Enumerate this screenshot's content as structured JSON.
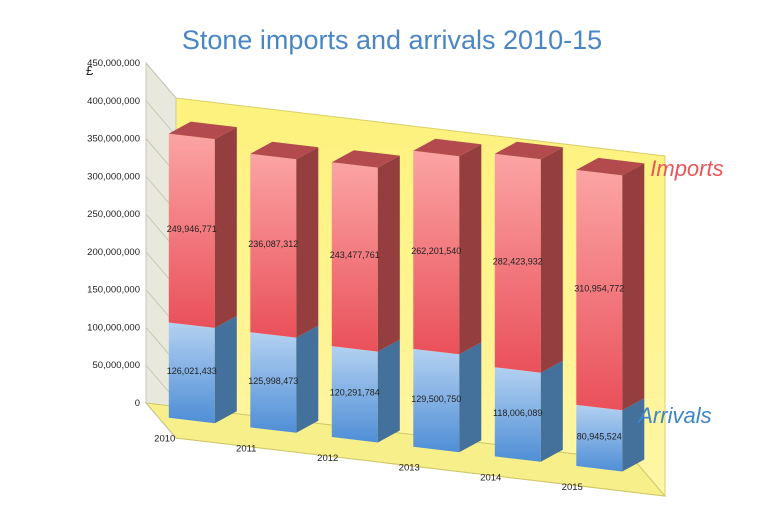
{
  "chart_data": {
    "type": "bar",
    "stacked": true,
    "three_d": true,
    "title": "Stone imports and arrivals 2010-15",
    "ylabel": "£",
    "ylim": [
      0,
      450000000
    ],
    "yticks": [
      "0",
      "50,000,000",
      "100,000,000",
      "150,000,000",
      "200,000,000",
      "250,000,000",
      "300,000,000",
      "350,000,000",
      "400,000,000",
      "450,000,000"
    ],
    "categories": [
      "2010",
      "2011",
      "2012",
      "2013",
      "2014",
      "2015"
    ],
    "series": [
      {
        "name": "Arrivals",
        "values": [
          126021433,
          125998473,
          120291784,
          129500750,
          118006089,
          80945524
        ],
        "labels": [
          "126,021,433",
          "125,998,473",
          "120,291,784",
          "129,500,750",
          "118,006,089",
          "80,945,524"
        ],
        "color": "#5f9bd8"
      },
      {
        "name": "Imports",
        "values": [
          249946771,
          236087312,
          243477761,
          262201540,
          282423932,
          310954772
        ],
        "labels": [
          "249,946,771",
          "236,087,312",
          "243,477,761",
          "262,201,540",
          "282,423,932",
          "310,954,772"
        ],
        "color": "#ee6468"
      }
    ],
    "legend": "right, inline beside top bar",
    "grid": false,
    "background_color": "#fdf37a"
  }
}
